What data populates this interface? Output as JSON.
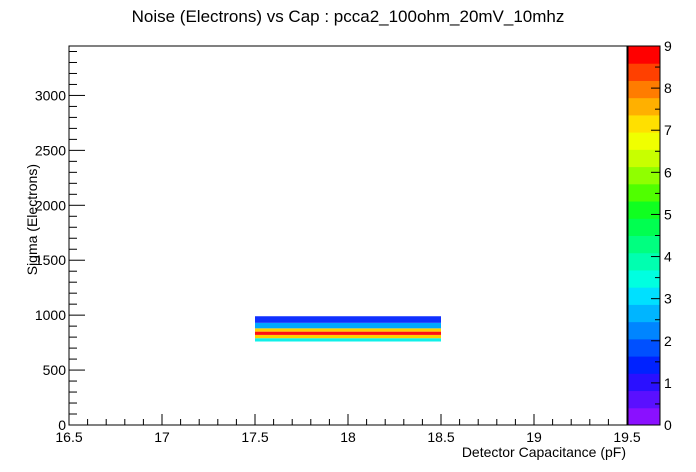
{
  "chart_data": {
    "type": "heatmap",
    "title": "Noise (Electrons) vs Cap : pcca2_100ohm_20mV_10mhz",
    "xlabel": "Detector Capacitance (pF)",
    "ylabel": "Sigma (Electrons)",
    "xlim": [
      16.5,
      19.5
    ],
    "ylim": [
      0,
      3450
    ],
    "x_ticks": [
      16.5,
      17,
      17.5,
      18,
      18.5,
      19,
      19.5
    ],
    "x_tick_labels": [
      "16.5",
      "17",
      "17.5",
      "18",
      "18.5",
      "19",
      "19.5"
    ],
    "y_ticks": [
      0,
      500,
      1000,
      1500,
      2000,
      2500,
      3000
    ],
    "y_tick_labels": [
      "0",
      "500",
      "1000",
      "1500",
      "2000",
      "2500",
      "3000"
    ],
    "colorbar": {
      "min": 0,
      "max": 9,
      "ticks": [
        0,
        1,
        2,
        3,
        4,
        5,
        6,
        7,
        8,
        9
      ],
      "tick_labels": [
        "0",
        "1",
        "2",
        "3",
        "4",
        "5",
        "6",
        "7",
        "8",
        "9"
      ],
      "colors": [
        "#8a10ff",
        "#5a10ff",
        "#2a10ff",
        "#0022ff",
        "#0050ff",
        "#0085ff",
        "#00b5ff",
        "#00e0ff",
        "#00ffe0",
        "#00ffb0",
        "#00ff80",
        "#00ff50",
        "#10ff20",
        "#50ff00",
        "#90ff00",
        "#c8ff00",
        "#f0ff00",
        "#ffe000",
        "#ffb000",
        "#ff7c00",
        "#ff4000",
        "#ff0000"
      ]
    },
    "cells": [
      {
        "x0": 17.5,
        "x1": 18.5,
        "y0": 760,
        "y1": 790,
        "color": "#10f0e8"
      },
      {
        "x0": 17.5,
        "x1": 18.5,
        "y0": 790,
        "y1": 820,
        "color": "#ffd000"
      },
      {
        "x0": 17.5,
        "x1": 18.5,
        "y0": 820,
        "y1": 850,
        "color": "#ff1010"
      },
      {
        "x0": 17.5,
        "x1": 18.5,
        "y0": 850,
        "y1": 880,
        "color": "#ffd000"
      },
      {
        "x0": 17.5,
        "x1": 18.5,
        "y0": 880,
        "y1": 930,
        "color": "#00a8ff"
      },
      {
        "x0": 17.5,
        "x1": 18.5,
        "y0": 930,
        "y1": 990,
        "color": "#1030ff"
      }
    ]
  }
}
